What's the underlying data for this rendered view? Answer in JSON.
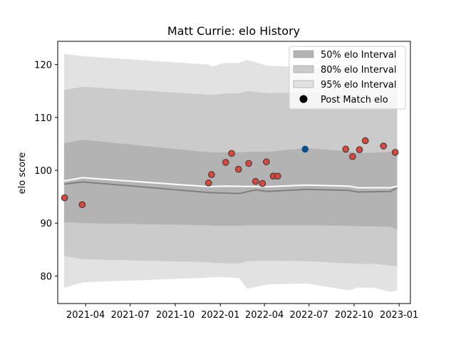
{
  "chart_data": {
    "type": "line",
    "title": "Matt Currie: elo History",
    "xlabel": "",
    "ylabel": "elo score",
    "ylim": [
      74.8,
      124.4
    ],
    "xlim": [
      "2021-02-03",
      "2023-01-24"
    ],
    "x_ticks": [
      "2021-04",
      "2021-07",
      "2021-10",
      "2022-01",
      "2022-04",
      "2022-07",
      "2022-10",
      "2023-01"
    ],
    "y_ticks": [
      80,
      90,
      100,
      110,
      120
    ],
    "legend_position": "top-right",
    "grid": false,
    "colors": {
      "band95": "#e2e2e2",
      "band80": "#cbcbcb",
      "band50": "#b3b3b3",
      "mean_line": "#7f7f7f",
      "median_line": "#ffffff",
      "point_red": "#d9483b",
      "point_blue": "#0a4f8c",
      "point_edge": "#333333"
    },
    "legend": [
      {
        "label": "50% elo Interval",
        "kind": "band50"
      },
      {
        "label": "80% elo Interval",
        "kind": "band80"
      },
      {
        "label": "95% elo Interval",
        "kind": "band95"
      },
      {
        "label": "Post Match elo",
        "kind": "point"
      }
    ],
    "band_x": [
      "2021-02-16",
      "2021-03-26",
      "2021-12-08",
      "2021-12-15",
      "2022-01-08",
      "2022-02-08",
      "2022-02-25",
      "2022-04-07",
      "2022-06-25",
      "2022-09-21",
      "2022-10-08",
      "2022-11-10",
      "2022-12-14",
      "2022-12-28"
    ],
    "band95": {
      "upper": [
        122.0,
        121.6,
        120.0,
        119.6,
        120.3,
        120.3,
        120.9,
        119.8,
        119.5,
        119.2,
        118.7,
        118.4,
        117.9,
        117.6
      ],
      "lower": [
        77.8,
        78.8,
        79.7,
        79.8,
        79.8,
        79.6,
        77.6,
        78.4,
        78.6,
        77.3,
        77.8,
        77.8,
        77.0,
        77.3
      ]
    },
    "band80": {
      "upper": [
        115.2,
        115.8,
        114.3,
        114.3,
        114.5,
        114.6,
        115.0,
        114.6,
        114.7,
        114.3,
        114.4,
        114.3,
        113.9,
        113.8
      ],
      "lower": [
        83.8,
        83.2,
        82.6,
        82.5,
        82.4,
        82.4,
        82.8,
        82.9,
        82.8,
        82.4,
        82.3,
        82.3,
        82.0,
        81.9
      ]
    },
    "band50": {
      "upper": [
        105.1,
        105.8,
        103.4,
        103.4,
        103.4,
        103.4,
        103.5,
        103.5,
        104.2,
        103.6,
        103.3,
        103.3,
        103.5,
        103.6
      ],
      "lower": [
        90.2,
        90.0,
        89.6,
        89.5,
        89.5,
        89.5,
        89.6,
        89.6,
        89.6,
        89.5,
        89.4,
        89.4,
        89.3,
        88.8
      ]
    },
    "mean_line": {
      "x": [
        "2021-02-16",
        "2021-03-26",
        "2021-12-08",
        "2022-02-08",
        "2022-03-14",
        "2022-04-07",
        "2022-06-25",
        "2022-09-21",
        "2022-10-08",
        "2022-12-14",
        "2022-12-28"
      ],
      "y": [
        97.4,
        97.8,
        95.8,
        95.6,
        96.3,
        96.0,
        96.4,
        96.2,
        95.9,
        96.0,
        96.7
      ]
    },
    "median_line": {
      "x": [
        "2021-02-16",
        "2021-03-26",
        "2021-12-08",
        "2022-01-08",
        "2022-04-07",
        "2022-06-25",
        "2022-09-21",
        "2022-10-08",
        "2022-12-14",
        "2022-12-28"
      ],
      "y": [
        98.0,
        98.6,
        96.9,
        97.0,
        96.9,
        97.2,
        97.0,
        96.7,
        96.7,
        97.0
      ]
    },
    "series": [
      {
        "name": "Post Match elo",
        "points": [
          {
            "x": "2021-02-17",
            "y": 94.8,
            "color": "red"
          },
          {
            "x": "2021-03-25",
            "y": 93.5,
            "color": "red"
          },
          {
            "x": "2021-12-08",
            "y": 97.6,
            "color": "red"
          },
          {
            "x": "2021-12-14",
            "y": 99.2,
            "color": "red"
          },
          {
            "x": "2022-01-12",
            "y": 101.5,
            "color": "red"
          },
          {
            "x": "2022-01-24",
            "y": 103.2,
            "color": "red"
          },
          {
            "x": "2022-02-07",
            "y": 100.2,
            "color": "red"
          },
          {
            "x": "2022-02-28",
            "y": 101.3,
            "color": "red"
          },
          {
            "x": "2022-03-14",
            "y": 97.9,
            "color": "red"
          },
          {
            "x": "2022-03-28",
            "y": 97.5,
            "color": "red"
          },
          {
            "x": "2022-04-05",
            "y": 101.6,
            "color": "red"
          },
          {
            "x": "2022-04-19",
            "y": 98.9,
            "color": "red"
          },
          {
            "x": "2022-04-28",
            "y": 98.9,
            "color": "red"
          },
          {
            "x": "2022-06-23",
            "y": 104.0,
            "color": "blue"
          },
          {
            "x": "2022-09-14",
            "y": 104.0,
            "color": "red"
          },
          {
            "x": "2022-09-28",
            "y": 102.6,
            "color": "red"
          },
          {
            "x": "2022-10-12",
            "y": 103.9,
            "color": "red"
          },
          {
            "x": "2022-10-24",
            "y": 105.6,
            "color": "red"
          },
          {
            "x": "2022-11-30",
            "y": 104.6,
            "color": "red"
          },
          {
            "x": "2022-12-24",
            "y": 103.4,
            "color": "red"
          }
        ]
      }
    ]
  }
}
